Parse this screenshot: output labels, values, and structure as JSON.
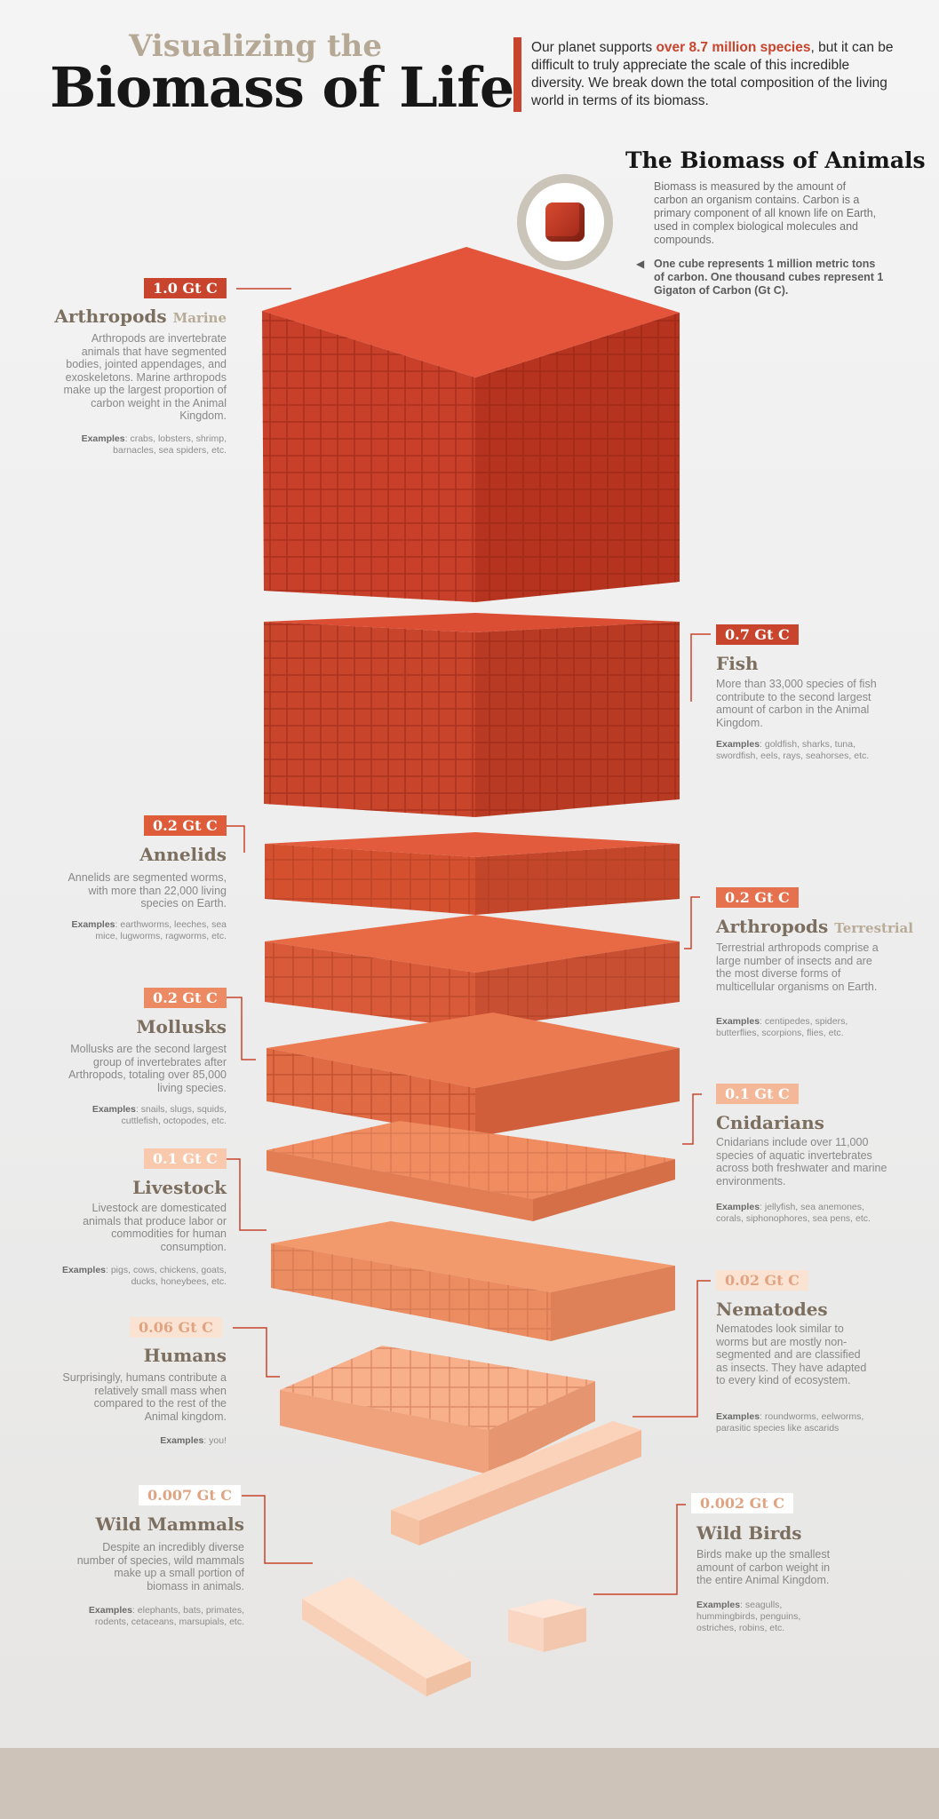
{
  "header": {
    "subtitle": "Visualizing the",
    "title": "Biomass of Life",
    "intro_before": "Our planet supports ",
    "intro_highlight": "over 8.7 million species",
    "intro_after": ", but it can be difficult to truly appreciate the scale of this incredible diversity. We break down the total composition of the living world in terms of its biomass."
  },
  "animals_panel": {
    "title": "The Biomass of Animals",
    "description": "Biomass is measured by the amount of carbon an organism contains. Carbon is a primary component of all known life on Earth, used in complex biological molecules and compounds.",
    "note": "One cube represents 1 million metric tons of carbon. One thousand cubes represent 1 Gigaton of Carbon (Gt C)."
  },
  "colors": {
    "accent": "#c8442c",
    "badge_dark": "#c8442c",
    "badge_mid": "#e5714f",
    "badge_light": "#f4b899",
    "badge_pale": "#fbe3d3",
    "footer": "#cdc3b8"
  },
  "groups": [
    {
      "key": "arthropods_marine",
      "value": "1.0 Gt C",
      "name": "Arthropods",
      "qualifier": "Marine",
      "description": "Arthropods are invertebrate animals that have segmented bodies, jointed appendages, and exoskeletons. Marine arthropods make up the largest proportion of carbon weight in the Animal Kingdom.",
      "examples_label": "Examples",
      "examples": "crabs, lobsters, shrimp, barnacles, sea spiders, etc.",
      "gt": 1.0
    },
    {
      "key": "fish",
      "value": "0.7 Gt C",
      "name": "Fish",
      "qualifier": "",
      "description": "More than 33,000 species of fish contribute to the second largest amount of carbon in the Animal Kingdom.",
      "examples_label": "Examples",
      "examples": "goldfish, sharks, tuna, swordfish, eels, rays, seahorses, etc.",
      "gt": 0.7
    },
    {
      "key": "annelids",
      "value": "0.2 Gt C",
      "name": "Annelids",
      "qualifier": "",
      "description": "Annelids are segmented worms, with more than 22,000 living species on Earth.",
      "examples_label": "Examples",
      "examples": "earthworms, leeches, sea mice, lugworms, ragworms, etc.",
      "gt": 0.2
    },
    {
      "key": "arthropods_terrestrial",
      "value": "0.2 Gt C",
      "name": "Arthropods",
      "qualifier": "Terrestrial",
      "description": "Terrestrial arthropods comprise a large number of insects and are the most diverse forms of multicellular organisms on Earth.",
      "examples_label": "Examples",
      "examples": "centipedes, spiders, butterflies, scorpions, flies, etc.",
      "gt": 0.2
    },
    {
      "key": "mollusks",
      "value": "0.2 Gt C",
      "name": "Mollusks",
      "qualifier": "",
      "description": "Mollusks are the second largest group of invertebrates after Arthropods, totaling over 85,000 living species.",
      "examples_label": "Examples",
      "examples": "snails, slugs, squids, cuttlefish, octopodes, etc.",
      "gt": 0.2
    },
    {
      "key": "cnidarians",
      "value": "0.1 Gt C",
      "name": "Cnidarians",
      "qualifier": "",
      "description": "Cnidarians include over 11,000 species of aquatic invertebrates across both freshwater and marine environments.",
      "examples_label": "Examples",
      "examples": "jellyfish, sea anemones, corals, siphonophores, sea pens, etc.",
      "gt": 0.1
    },
    {
      "key": "livestock",
      "value": "0.1 Gt C",
      "name": "Livestock",
      "qualifier": "",
      "description": "Livestock are domesticated animals that produce labor or commodities for human consumption.",
      "examples_label": "Examples",
      "examples": "pigs, cows, chickens, goats, ducks, honeybees, etc.",
      "gt": 0.1
    },
    {
      "key": "nematodes",
      "value": "0.02 Gt C",
      "name": "Nematodes",
      "qualifier": "",
      "description": "Nematodes look similar to worms but are mostly non-segmented and are classified as insects. They have adapted to every kind of ecosystem.",
      "examples_label": "Examples",
      "examples": "roundworms, eelworms, parasitic species like ascarids",
      "gt": 0.02
    },
    {
      "key": "humans",
      "value": "0.06 Gt C",
      "name": "Humans",
      "qualifier": "",
      "description": "Surprisingly, humans contribute a relatively small mass when compared to the rest of the Animal kingdom.",
      "examples_label": "Examples",
      "examples": "you!",
      "gt": 0.06
    },
    {
      "key": "wild_mammals",
      "value": "0.007 Gt C",
      "name": "Wild Mammals",
      "qualifier": "",
      "description": "Despite an incredibly diverse number of species, wild mammals make up a small portion of biomass in animals.",
      "examples_label": "Examples",
      "examples": "elephants, bats, primates, rodents, cetaceans, marsupials, etc.",
      "gt": 0.007
    },
    {
      "key": "wild_birds",
      "value": "0.002 Gt C",
      "name": "Wild Birds",
      "qualifier": "",
      "description": "Birds make up the smallest amount of carbon weight in the entire Animal Kingdom.",
      "examples_label": "Examples",
      "examples": "seagulls, hummingbirds, penguins, ostriches, robins, etc.",
      "gt": 0.002
    }
  ]
}
